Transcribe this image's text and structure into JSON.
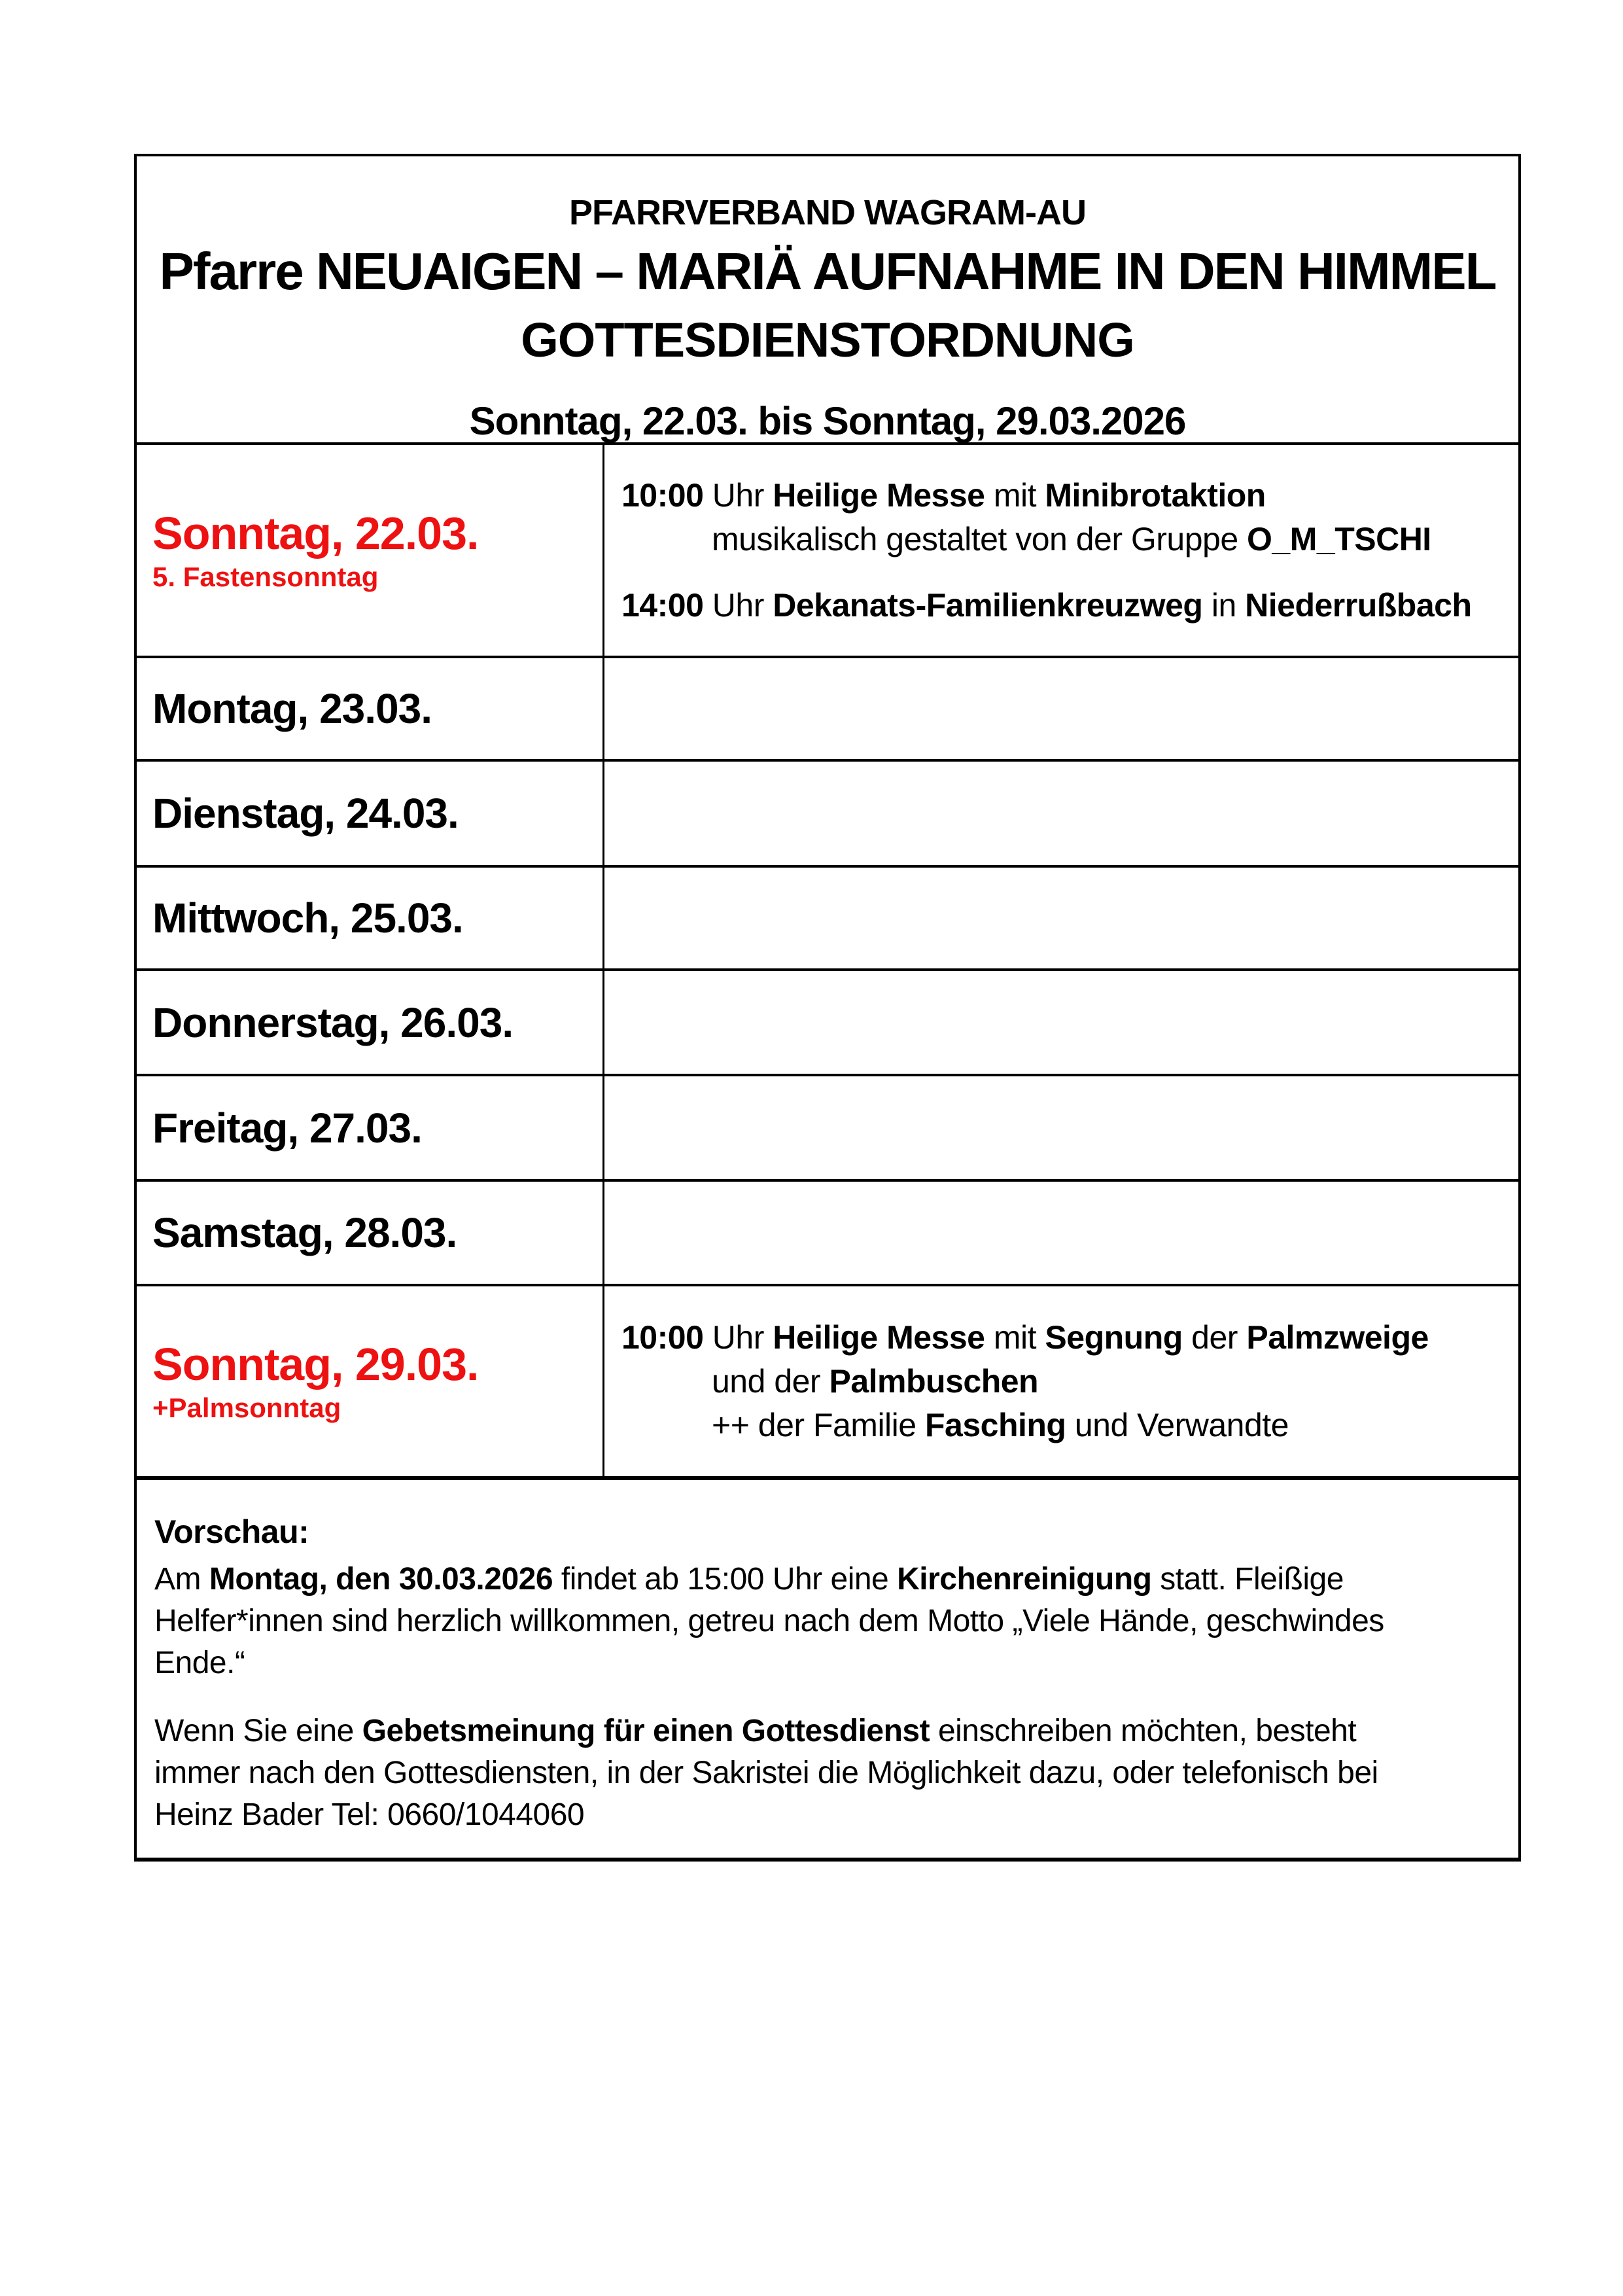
{
  "colors": {
    "accent_red": "#ee1111",
    "text": "#000000",
    "border": "#000000",
    "background": "#ffffff"
  },
  "header": {
    "line1": "PFARRVERBAND WAGRAM-AU",
    "line2": "Pfarre NEUAIGEN – MARIÄ AUFNAHME IN DEN HIMMEL",
    "line3": "GOTTESDIENSTORDNUNG",
    "date_range": "Sonntag, 22.03. bis Sonntag, 29.03.2026"
  },
  "rows": [
    {
      "day": "Sonntag, 22.03.",
      "day_note": "5. Fastensonntag",
      "highlight": true,
      "events": [
        {
          "lines": [
            [
              {
                "t": "10:00",
                "b": 1
              },
              {
                "t": " Uhr ",
                "b": 0
              },
              {
                "t": "Heilige Messe",
                "b": 1
              },
              {
                "t": " mit ",
                "b": 0
              },
              {
                "t": "Minibrotaktion",
                "b": 1
              }
            ],
            [
              {
                "t": "musikalisch gestaltet von der Gruppe ",
                "b": 0
              },
              {
                "t": "O_M_TSCHI",
                "b": 1
              }
            ]
          ]
        },
        {
          "lines": [
            [
              {
                "t": "14:00",
                "b": 1
              },
              {
                "t": " Uhr ",
                "b": 0
              },
              {
                "t": "Dekanats-Familienkreuzweg",
                "b": 1
              },
              {
                "t": " in ",
                "b": 0
              },
              {
                "t": "Niederrußbach",
                "b": 1
              }
            ]
          ]
        }
      ]
    },
    {
      "day": "Montag, 23.03.",
      "day_note": "",
      "highlight": false,
      "events": []
    },
    {
      "day": "Dienstag, 24.03.",
      "day_note": "",
      "highlight": false,
      "events": []
    },
    {
      "day": "Mittwoch, 25.03.",
      "day_note": "",
      "highlight": false,
      "events": []
    },
    {
      "day": "Donnerstag, 26.03.",
      "day_note": "",
      "highlight": false,
      "events": []
    },
    {
      "day": "Freitag, 27.03.",
      "day_note": "",
      "highlight": false,
      "events": []
    },
    {
      "day": "Samstag, 28.03.",
      "day_note": "",
      "highlight": false,
      "events": []
    },
    {
      "day": "Sonntag, 29.03.",
      "day_note": "+Palmsonntag",
      "highlight": true,
      "events": [
        {
          "lines": [
            [
              {
                "t": "10:00",
                "b": 1
              },
              {
                "t": " Uhr ",
                "b": 0
              },
              {
                "t": "Heilige Messe",
                "b": 1
              },
              {
                "t": " mit ",
                "b": 0
              },
              {
                "t": "Segnung",
                "b": 1
              },
              {
                "t": " der ",
                "b": 0
              },
              {
                "t": "Palmzweige",
                "b": 1
              }
            ],
            [
              {
                "t": "und der ",
                "b": 0
              },
              {
                "t": "Palmbuschen",
                "b": 1
              }
            ],
            [
              {
                "t": "++ der Familie ",
                "b": 0
              },
              {
                "t": "Fasching",
                "b": 1
              },
              {
                "t": " und Verwandte",
                "b": 0
              }
            ]
          ]
        }
      ]
    }
  ],
  "footer": {
    "title": "Vorschau:",
    "paragraphs": [
      {
        "lines": [
          [
            {
              "t": "Am ",
              "b": 0
            },
            {
              "t": "Montag, den 30.03.2026",
              "b": 1
            },
            {
              "t": " findet ab 15:00 Uhr eine ",
              "b": 0
            },
            {
              "t": "Kirchenreinigung",
              "b": 1
            },
            {
              "t": " statt. Fleißige",
              "b": 0
            }
          ],
          [
            {
              "t": "Helfer*innen sind herzlich willkommen, getreu nach dem Motto „Viele Hände, geschwindes",
              "b": 0
            }
          ],
          [
            {
              "t": "Ende.“",
              "b": 0
            }
          ]
        ]
      },
      {
        "lines": [
          [
            {
              "t": "Wenn Sie eine ",
              "b": 0
            },
            {
              "t": "Gebetsmeinung für einen Gottesdienst",
              "b": 1
            },
            {
              "t": " einschreiben möchten, besteht",
              "b": 0
            }
          ],
          [
            {
              "t": "immer nach den Gottesdiensten, in der Sakristei die Möglichkeit dazu, oder telefonisch bei",
              "b": 0
            }
          ],
          [
            {
              "t": "Heinz Bader Tel: 0660/1044060",
              "b": 0
            }
          ]
        ]
      }
    ]
  }
}
